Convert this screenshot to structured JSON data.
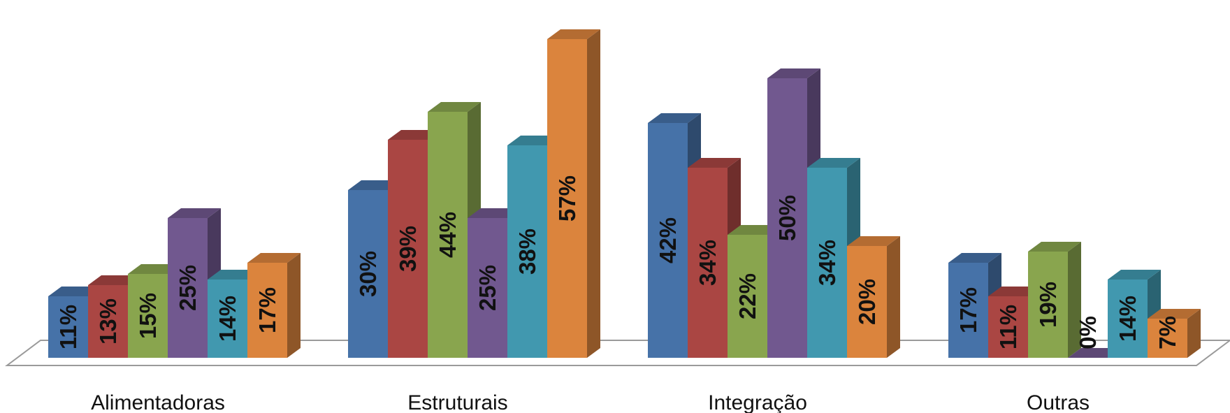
{
  "chart_data": {
    "type": "bar",
    "style": "3d-clustered-column",
    "categories": [
      "Alimentadoras",
      "Estruturais",
      "Integração",
      "Outras"
    ],
    "series": [
      {
        "color": "#4672A8",
        "values": [
          11,
          30,
          42,
          17
        ]
      },
      {
        "color": "#AA4643",
        "values": [
          13,
          39,
          34,
          11
        ]
      },
      {
        "color": "#89A54E",
        "values": [
          15,
          44,
          22,
          19
        ]
      },
      {
        "color": "#71588F",
        "values": [
          25,
          25,
          50,
          0
        ]
      },
      {
        "color": "#4198AF",
        "values": [
          14,
          38,
          34,
          14
        ]
      },
      {
        "color": "#DB843D",
        "values": [
          17,
          57,
          20,
          7
        ]
      }
    ],
    "data_labels": [
      [
        "11%",
        "30%",
        "42%",
        "17%"
      ],
      [
        "13%",
        "39%",
        "34%",
        "11%"
      ],
      [
        "15%",
        "44%",
        "22%",
        "19%"
      ],
      [
        "25%",
        "25%",
        "50%",
        "0%"
      ],
      [
        "14%",
        "38%",
        "34%",
        "14%"
      ],
      [
        "17%",
        "57%",
        "20%",
        "7%"
      ]
    ],
    "value_unit": "%",
    "ylim": [
      0,
      57
    ],
    "grid": false,
    "legend": "none",
    "title": "",
    "xlabel": "",
    "ylabel": ""
  }
}
